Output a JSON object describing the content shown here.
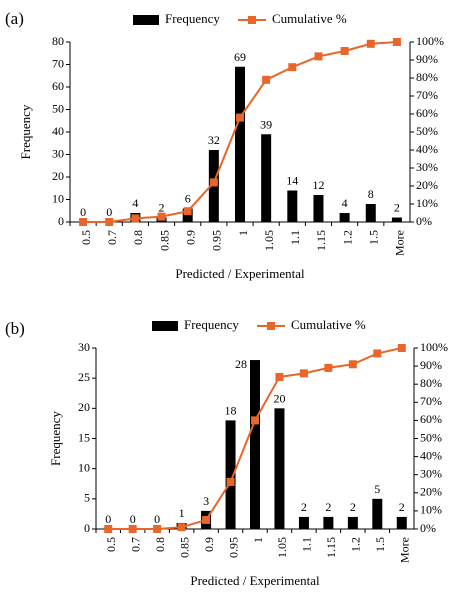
{
  "chart_data": [
    {
      "type": "bar",
      "panel_label": "(a)",
      "categories": [
        "0.5",
        "0.7",
        "0.8",
        "0.85",
        "0.9",
        "0.95",
        "1",
        "1.05",
        "1.1",
        "1.15",
        "1.2",
        "1.5",
        "More"
      ],
      "series": [
        {
          "name": "Frequency",
          "type": "bar",
          "axis": "left",
          "color": "#000000",
          "values": [
            0,
            0,
            4,
            2,
            6,
            32,
            69,
            39,
            14,
            12,
            4,
            8,
            2
          ]
        },
        {
          "name": "Cumulative %",
          "type": "line",
          "axis": "right",
          "color": "#e8662a",
          "values": [
            0,
            0,
            2,
            3,
            6,
            22,
            58,
            79,
            86,
            92,
            95,
            99,
            100
          ]
        }
      ],
      "data_labels": [
        "0",
        "0",
        "4",
        "2",
        "6",
        "32",
        "69",
        "39",
        "14",
        "12",
        "4",
        "8",
        "2"
      ],
      "xlabel": "Predicted / Experimental",
      "ylabel": "Frequency",
      "ylim": [
        0,
        80
      ],
      "yticks": [
        "0",
        "10",
        "20",
        "30",
        "40",
        "50",
        "60",
        "70",
        "80"
      ],
      "y2lim": [
        0,
        100
      ],
      "y2ticks": [
        "0%",
        "10%",
        "20%",
        "30%",
        "40%",
        "50%",
        "60%",
        "70%",
        "80%",
        "90%",
        "100%"
      ],
      "legend_position": "top",
      "grid": false
    },
    {
      "type": "bar",
      "panel_label": "(b)",
      "categories": [
        "0.5",
        "0.7",
        "0.8",
        "0.85",
        "0.9",
        "0.95",
        "1",
        "1.05",
        "1.1",
        "1.15",
        "1.2",
        "1.5",
        "More"
      ],
      "series": [
        {
          "name": "Frequency",
          "type": "bar",
          "axis": "left",
          "color": "#000000",
          "values": [
            0,
            0,
            0,
            1,
            3,
            18,
            28,
            20,
            2,
            2,
            2,
            5,
            2
          ]
        },
        {
          "name": "Cumulative %",
          "type": "line",
          "axis": "right",
          "color": "#e8662a",
          "values": [
            0,
            0,
            0,
            1,
            5,
            26,
            60,
            84,
            86,
            89,
            91,
            97,
            100
          ]
        }
      ],
      "data_labels": [
        "0",
        "0",
        "0",
        "1",
        "3",
        "18",
        "28",
        "20",
        "2",
        "2",
        "2",
        "5",
        "2"
      ],
      "xlabel": "Predicted / Experimental",
      "ylabel": "Frequency",
      "ylim": [
        0,
        30
      ],
      "yticks": [
        "0",
        "5",
        "10",
        "15",
        "20",
        "25",
        "30"
      ],
      "y2lim": [
        0,
        100
      ],
      "y2ticks": [
        "0%",
        "10%",
        "20%",
        "30%",
        "40%",
        "50%",
        "60%",
        "70%",
        "80%",
        "90%",
        "100%"
      ],
      "legend_position": "top",
      "grid": false
    }
  ]
}
